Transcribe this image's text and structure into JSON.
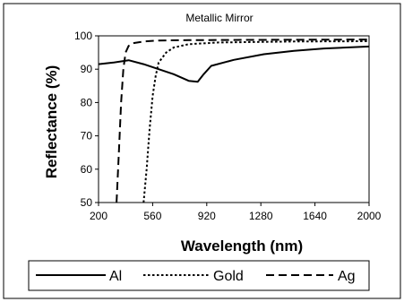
{
  "chart_data": {
    "type": "line",
    "title": "Metallic Mirror",
    "xlabel": "Wavelength (nm)",
    "ylabel": "Reflectance (%)",
    "xlim": [
      200,
      2000
    ],
    "ylim": [
      50,
      100
    ],
    "x_ticks": [
      200,
      560,
      920,
      1280,
      1640,
      2000
    ],
    "y_ticks": [
      50,
      60,
      70,
      80,
      90,
      100
    ],
    "grid": false,
    "legend": "bottom",
    "series": [
      {
        "name": "Al",
        "style": "solid",
        "color": "#000000",
        "x": [
          200,
          300,
          400,
          500,
          600,
          700,
          800,
          860,
          900,
          950,
          1100,
          1300,
          1500,
          1700,
          2000
        ],
        "y": [
          91.5,
          92,
          92.7,
          91.5,
          90,
          88.5,
          86.5,
          86.2,
          88.5,
          91,
          92.8,
          94.5,
          95.5,
          96.2,
          96.8
        ]
      },
      {
        "name": "Gold",
        "style": "dotted",
        "color": "#000000",
        "x": [
          500,
          520,
          540,
          560,
          580,
          600,
          650,
          700,
          800,
          1000,
          1500,
          2000
        ],
        "y": [
          50,
          60,
          72,
          82,
          88,
          92,
          95,
          96.5,
          97.5,
          98,
          98.3,
          98.4
        ]
      },
      {
        "name": "Ag",
        "style": "dashed",
        "color": "#000000",
        "x": [
          320,
          335,
          350,
          365,
          380,
          400,
          430,
          500,
          600,
          800,
          1200,
          2000
        ],
        "y": [
          50,
          65,
          80,
          90,
          95,
          97,
          97.8,
          98.3,
          98.6,
          98.7,
          98.8,
          98.9
        ]
      }
    ]
  }
}
